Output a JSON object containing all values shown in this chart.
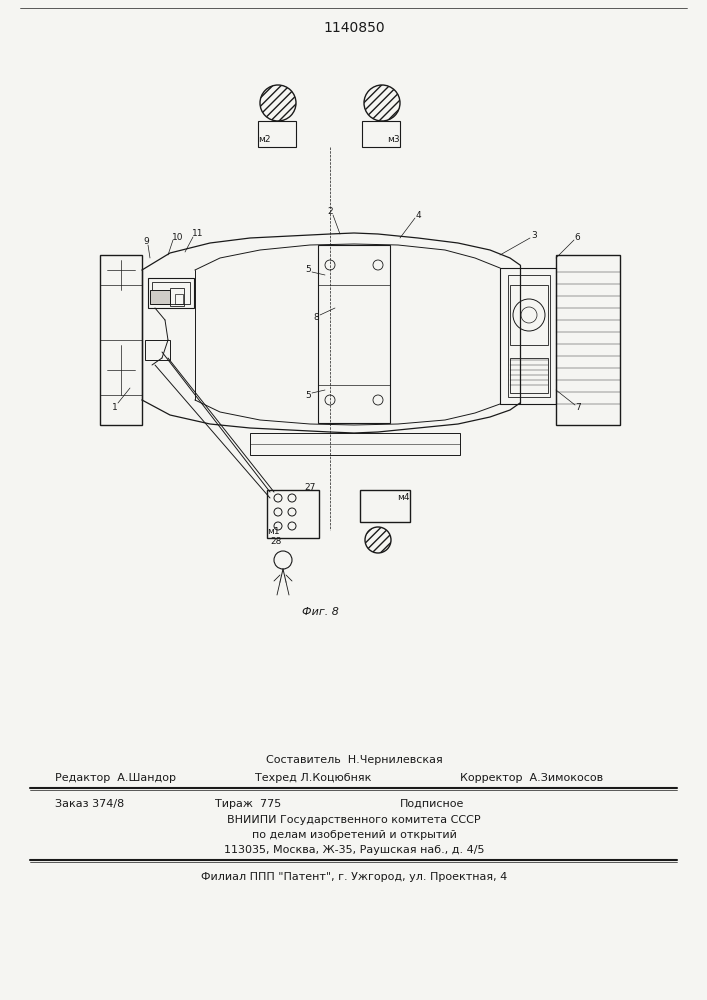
{
  "patent_number": "1140850",
  "fig_caption": "Фиг. 8",
  "bg_color": "#f5f5f2",
  "line_color": "#1a1a1a",
  "footer": {
    "line1_center": "Составитель  Н.Чернилевская",
    "line2_left": "Редактор  А.Шандор",
    "line2_mid": "Техред Л.Коцюбняк",
    "line2_right": "Корректор  А.Зимокосов",
    "line3_left": "Заказ 374/8",
    "line3_mid": "Тираж  775",
    "line3_right": "Подписное",
    "line4": "ВНИИПИ Государственного комитета СССР",
    "line5": "по делам изобретений и открытий",
    "line6": "113035, Москва, Ж-35, Раушская наб., д. 4/5",
    "line7": "Филиал ППП \"Патент\", г. Ужгород, ул. Проектная, 4"
  }
}
